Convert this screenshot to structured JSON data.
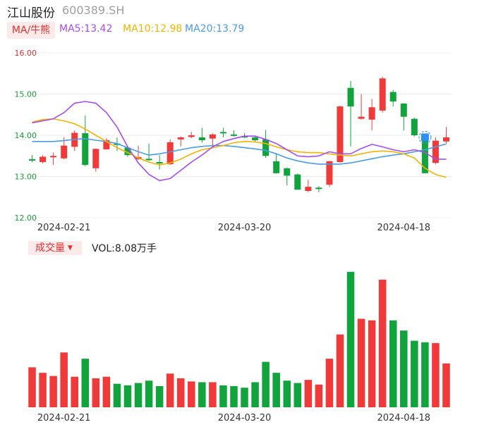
{
  "header": {
    "name": "江山股份",
    "code": "600389.SH"
  },
  "ma_legend": {
    "tag": "MA/牛熊",
    "items": [
      {
        "label": "MA5:13.42",
        "color": "#a64cf0"
      },
      {
        "label": "MA10:12.98",
        "color": "#f0b400"
      },
      {
        "label": "MA20:13.79",
        "color": "#4a9be8"
      }
    ]
  },
  "volume_legend": {
    "tag": "成交量",
    "value_label": "VOL:8.08万手"
  },
  "colors": {
    "up": "#f03a3a",
    "down": "#11a33c",
    "grid": "#ececec",
    "axis_label": "#1a9a3a",
    "price_label_top": "#e03030"
  },
  "chart_data": [
    {
      "type": "candlestick",
      "ylim": [
        12.0,
        16.0
      ],
      "yticks": [
        "16.00",
        "15.00",
        "14.00",
        "13.00",
        "12.00"
      ],
      "xticks": [
        {
          "label": "2024-02-21",
          "index": 3
        },
        {
          "label": "2024-03-20",
          "index": 20
        },
        {
          "label": "2024-04-18",
          "index": 35
        }
      ],
      "candles": [
        {
          "o": 13.42,
          "h": 13.52,
          "l": 13.35,
          "c": 13.4
        },
        {
          "o": 13.35,
          "h": 13.52,
          "l": 13.32,
          "c": 13.48
        },
        {
          "o": 13.5,
          "h": 13.58,
          "l": 13.28,
          "c": 13.5
        },
        {
          "o": 13.44,
          "h": 13.95,
          "l": 13.42,
          "c": 13.75
        },
        {
          "o": 13.72,
          "h": 14.12,
          "l": 13.62,
          "c": 14.06
        },
        {
          "o": 14.05,
          "h": 14.48,
          "l": 13.25,
          "c": 13.28
        },
        {
          "o": 13.2,
          "h": 13.68,
          "l": 13.12,
          "c": 13.67
        },
        {
          "o": 13.66,
          "h": 13.93,
          "l": 13.65,
          "c": 13.88
        },
        {
          "o": 13.8,
          "h": 13.95,
          "l": 13.62,
          "c": 13.77
        },
        {
          "o": 13.7,
          "h": 13.73,
          "l": 13.48,
          "c": 13.52
        },
        {
          "o": 13.42,
          "h": 13.75,
          "l": 13.4,
          "c": 13.47
        },
        {
          "o": 13.43,
          "h": 13.8,
          "l": 13.38,
          "c": 13.42
        },
        {
          "o": 13.35,
          "h": 13.52,
          "l": 13.17,
          "c": 13.34
        },
        {
          "o": 13.3,
          "h": 13.9,
          "l": 13.28,
          "c": 13.83
        },
        {
          "o": 13.9,
          "h": 13.97,
          "l": 13.73,
          "c": 13.95
        },
        {
          "o": 13.96,
          "h": 14.08,
          "l": 13.93,
          "c": 14.0
        },
        {
          "o": 13.95,
          "h": 14.18,
          "l": 13.82,
          "c": 13.88
        },
        {
          "o": 13.92,
          "h": 14.05,
          "l": 13.68,
          "c": 14.02
        },
        {
          "o": 14.08,
          "h": 14.18,
          "l": 13.95,
          "c": 14.05
        },
        {
          "o": 14.02,
          "h": 14.12,
          "l": 13.97,
          "c": 14.0
        },
        {
          "o": 13.98,
          "h": 14.05,
          "l": 13.93,
          "c": 13.97
        },
        {
          "o": 13.95,
          "h": 13.98,
          "l": 13.85,
          "c": 13.88
        },
        {
          "o": 13.9,
          "h": 14.13,
          "l": 13.45,
          "c": 13.5
        },
        {
          "o": 13.37,
          "h": 13.57,
          "l": 13.07,
          "c": 13.08
        },
        {
          "o": 13.2,
          "h": 13.22,
          "l": 12.78,
          "c": 13.02
        },
        {
          "o": 13.05,
          "h": 13.07,
          "l": 12.68,
          "c": 12.68
        },
        {
          "o": 12.65,
          "h": 12.92,
          "l": 12.62,
          "c": 12.75
        },
        {
          "o": 12.73,
          "h": 12.77,
          "l": 12.62,
          "c": 12.72
        },
        {
          "o": 12.8,
          "h": 13.38,
          "l": 12.75,
          "c": 13.37
        },
        {
          "o": 13.35,
          "h": 14.72,
          "l": 13.33,
          "c": 14.7
        },
        {
          "o": 15.15,
          "h": 15.32,
          "l": 13.73,
          "c": 14.7
        },
        {
          "o": 14.4,
          "h": 15.0,
          "l": 14.38,
          "c": 14.45
        },
        {
          "o": 14.38,
          "h": 14.88,
          "l": 14.12,
          "c": 14.68
        },
        {
          "o": 14.6,
          "h": 15.42,
          "l": 14.55,
          "c": 15.38
        },
        {
          "o": 15.05,
          "h": 15.1,
          "l": 14.7,
          "c": 14.82
        },
        {
          "o": 14.77,
          "h": 14.78,
          "l": 14.12,
          "c": 14.45
        },
        {
          "o": 14.4,
          "h": 14.43,
          "l": 13.97,
          "c": 14.0
        },
        {
          "o": 13.92,
          "h": 13.95,
          "l": 13.08,
          "c": 13.08
        },
        {
          "o": 13.33,
          "h": 13.95,
          "l": 13.3,
          "c": 13.87
        },
        {
          "o": 13.85,
          "h": 14.2,
          "l": 13.8,
          "c": 13.95
        }
      ],
      "ma5": [
        14.3,
        14.35,
        14.4,
        14.55,
        14.78,
        14.82,
        14.78,
        14.55,
        14.2,
        13.72,
        13.33,
        13.05,
        12.9,
        12.95,
        13.15,
        13.35,
        13.52,
        13.72,
        13.85,
        13.92,
        13.98,
        13.98,
        13.9,
        13.8,
        13.65,
        13.5,
        13.48,
        13.5,
        13.6,
        13.55,
        13.55,
        13.68,
        13.78,
        13.72,
        13.65,
        13.6,
        13.65,
        13.58,
        13.42,
        13.42
      ],
      "ma10": [
        14.32,
        14.38,
        14.4,
        14.35,
        14.28,
        14.15,
        14.0,
        13.85,
        13.7,
        13.58,
        13.45,
        13.35,
        13.28,
        13.33,
        13.42,
        13.55,
        13.65,
        13.7,
        13.75,
        13.82,
        13.85,
        13.84,
        13.8,
        13.72,
        13.65,
        13.6,
        13.58,
        13.58,
        13.55,
        13.52,
        13.5,
        13.55,
        13.6,
        13.62,
        13.6,
        13.55,
        13.45,
        13.2,
        13.05,
        12.98
      ],
      "ma20": [
        13.85,
        13.85,
        13.85,
        13.87,
        13.9,
        13.92,
        13.88,
        13.85,
        13.8,
        13.7,
        13.6,
        13.52,
        13.55,
        13.6,
        13.65,
        13.7,
        13.73,
        13.75,
        13.75,
        13.73,
        13.7,
        13.67,
        13.63,
        13.55,
        13.45,
        13.38,
        13.33,
        13.3,
        13.3,
        13.3,
        13.33,
        13.38,
        13.43,
        13.48,
        13.52,
        13.55,
        13.6,
        13.65,
        13.72,
        13.79
      ]
    },
    {
      "type": "bar",
      "title": "成交量",
      "values": [
        5.1,
        4.4,
        4.0,
        7.0,
        3.9,
        6.2,
        3.7,
        3.9,
        3.0,
        2.8,
        3.1,
        3.4,
        2.7,
        4.3,
        3.7,
        3.3,
        3.2,
        3.2,
        2.8,
        2.7,
        2.5,
        3.2,
        5.8,
        4.4,
        3.4,
        3.1,
        3.5,
        2.9,
        6.2,
        9.3,
        17.3,
        11.3,
        11.1,
        16.3,
        11.1,
        9.8,
        8.5,
        8.3,
        8.2,
        5.6
      ],
      "up": [
        true,
        true,
        true,
        true,
        true,
        false,
        true,
        true,
        false,
        false,
        false,
        false,
        false,
        true,
        true,
        true,
        false,
        true,
        false,
        false,
        false,
        false,
        false,
        false,
        false,
        false,
        true,
        true,
        true,
        true,
        false,
        true,
        true,
        true,
        false,
        false,
        false,
        false,
        true,
        true
      ]
    }
  ]
}
